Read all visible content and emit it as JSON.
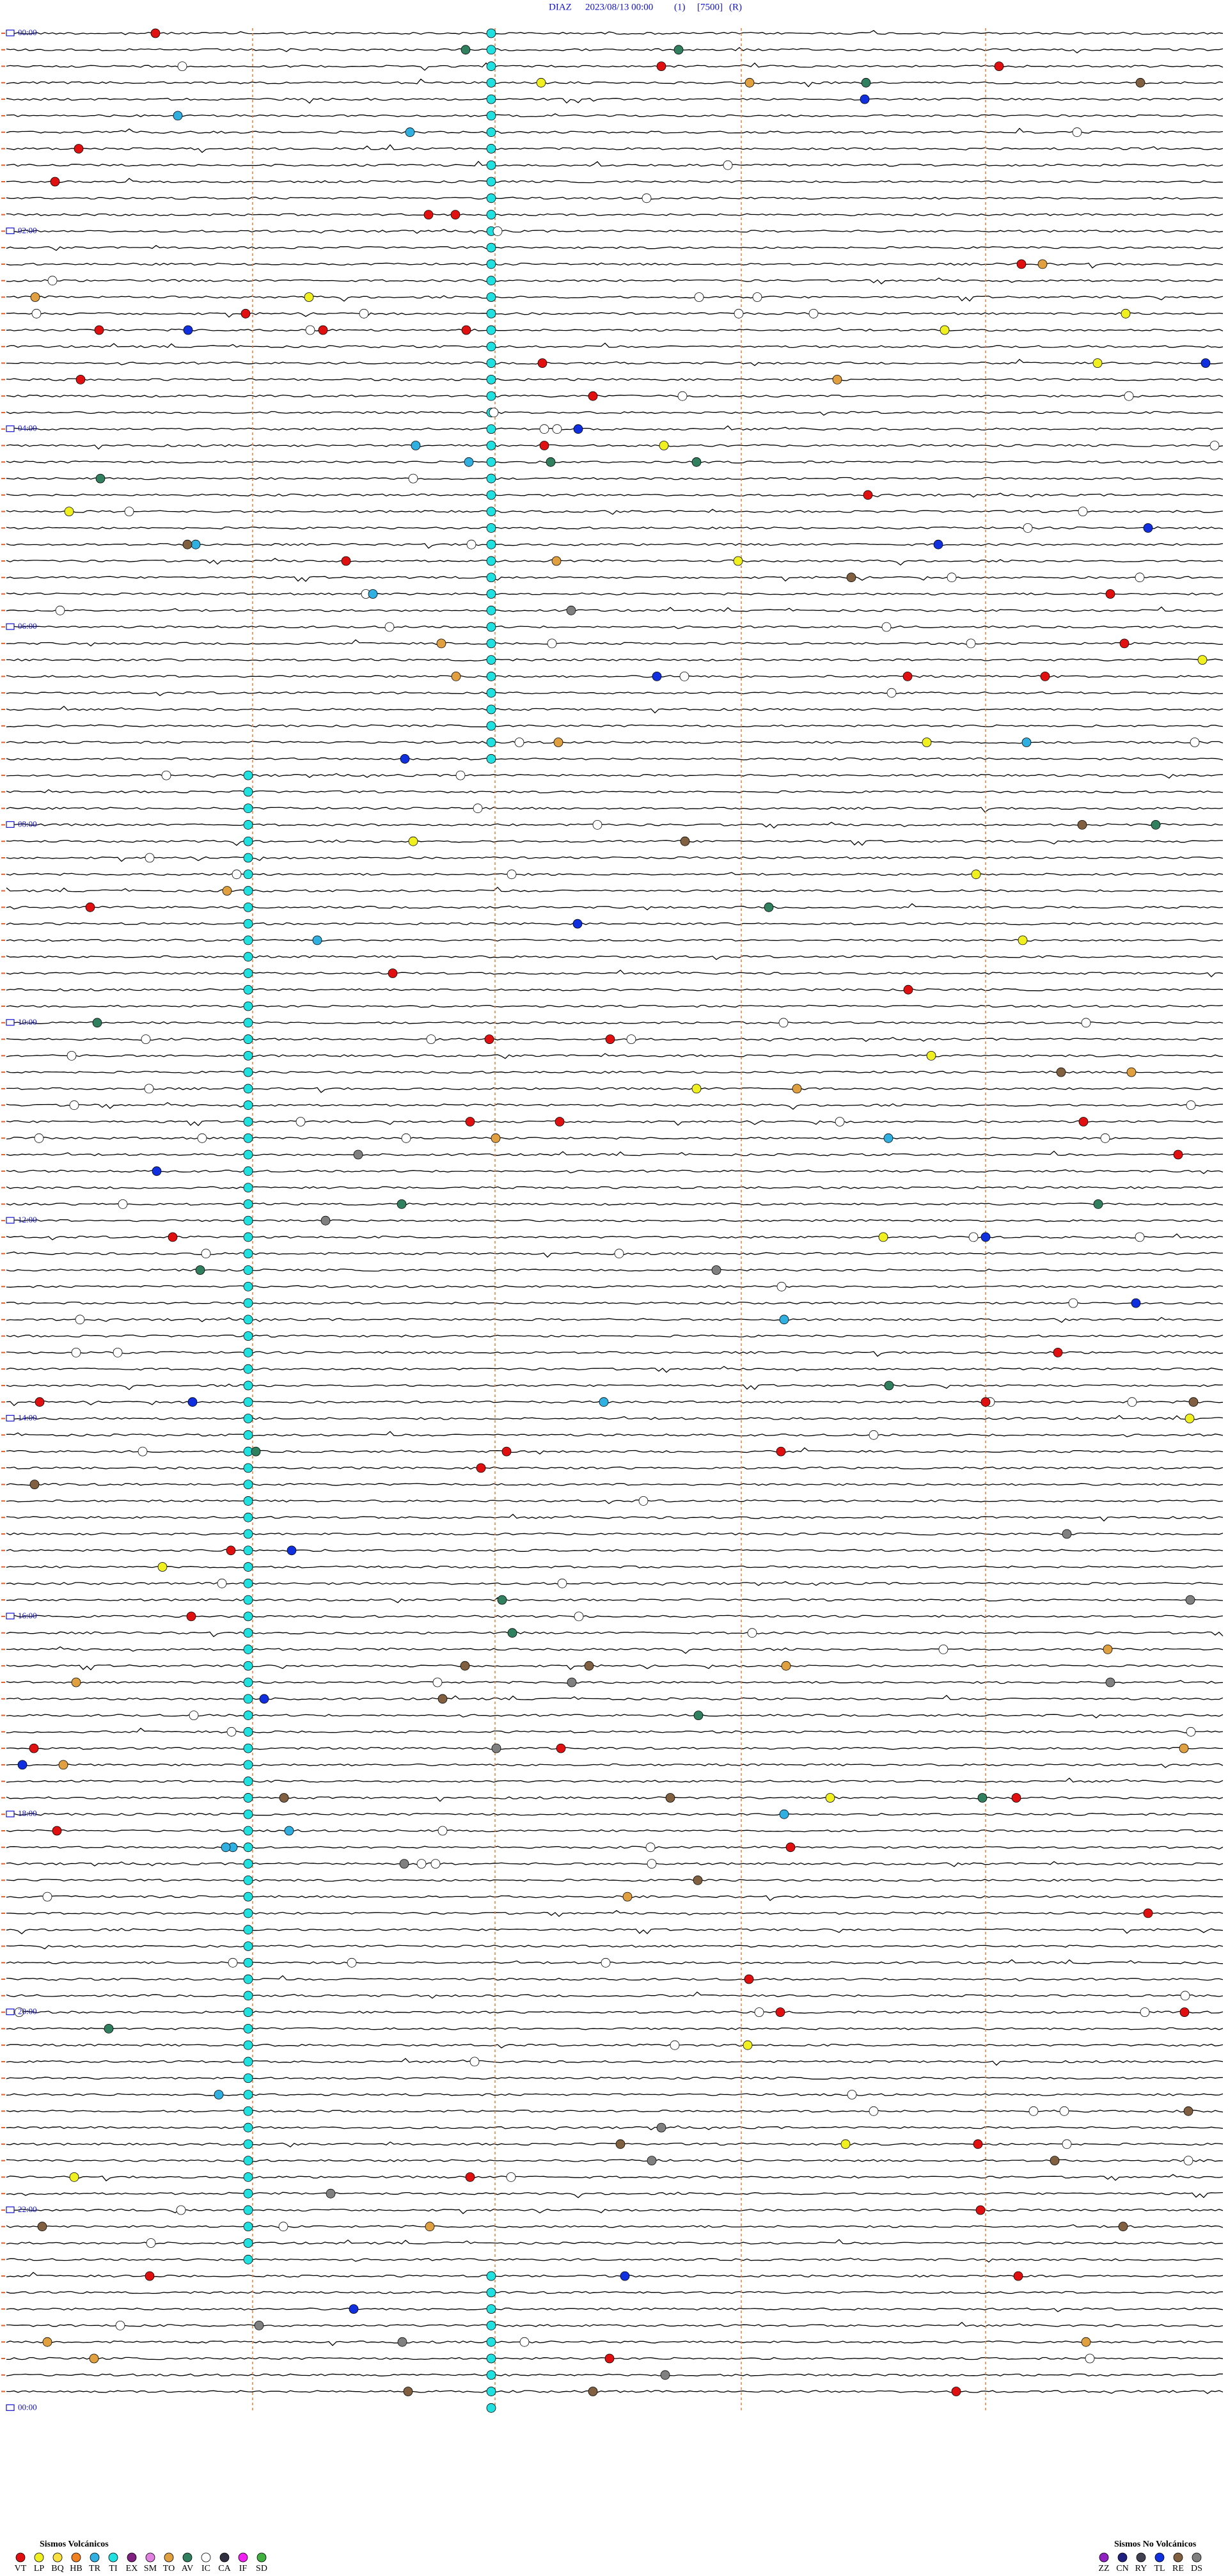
{
  "header": {
    "station": "DIAZ",
    "datetime": "2023/08/13 00:00",
    "channel": "(1)",
    "gain": "[7500]",
    "mode": "(R)"
  },
  "time_labels": [
    "00:00",
    "02:00",
    "04:00",
    "06:00",
    "08:00",
    "10:00",
    "12:00",
    "14:00",
    "16:00",
    "18:00",
    "20:00",
    "22:00",
    "00:00"
  ],
  "legend_volcanic": {
    "title": "Sismos Volcánicos",
    "items": [
      {
        "code": "VT",
        "color": "#e01010"
      },
      {
        "code": "LP",
        "color": "#f0f020"
      },
      {
        "code": "BQ",
        "color": "#f8e040"
      },
      {
        "code": "HB",
        "color": "#f08020"
      },
      {
        "code": "TR",
        "color": "#30b0e0"
      },
      {
        "code": "TI",
        "color": "#20e0e0"
      },
      {
        "code": "EX",
        "color": "#802080"
      },
      {
        "code": "SM",
        "color": "#e080e0"
      },
      {
        "code": "TO",
        "color": "#e0a040"
      },
      {
        "code": "AV",
        "color": "#308060"
      },
      {
        "code": "IC",
        "color": "#ffffff"
      },
      {
        "code": "CA",
        "color": "#303040"
      },
      {
        "code": "IF",
        "color": "#f020f0"
      },
      {
        "code": "SD",
        "color": "#40b040"
      }
    ]
  },
  "legend_non_volcanic": {
    "title": "Sismos No Volcánicos",
    "items": [
      {
        "code": "ZZ",
        "color": "#9020c0"
      },
      {
        "code": "CN",
        "color": "#202080"
      },
      {
        "code": "RY",
        "color": "#404050"
      },
      {
        "code": "TL",
        "color": "#1030e0"
      },
      {
        "code": "RE",
        "color": "#806040"
      },
      {
        "code": "DS",
        "color": "#808080"
      }
    ]
  }
}
